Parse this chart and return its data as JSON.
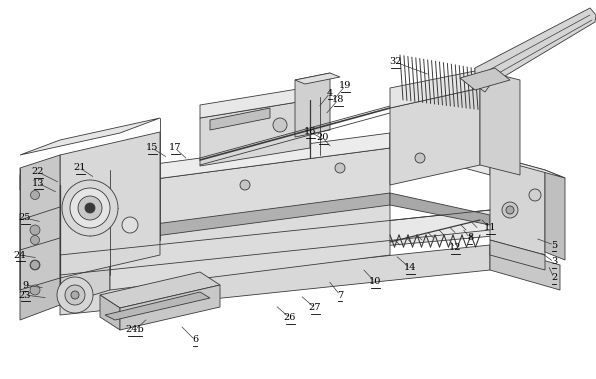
{
  "background_color": "#ffffff",
  "fig_width": 5.96,
  "fig_height": 3.79,
  "dpi": 100,
  "line_color": "#3a3a3a",
  "label_fontsize": 7.0,
  "image_b64": ""
}
